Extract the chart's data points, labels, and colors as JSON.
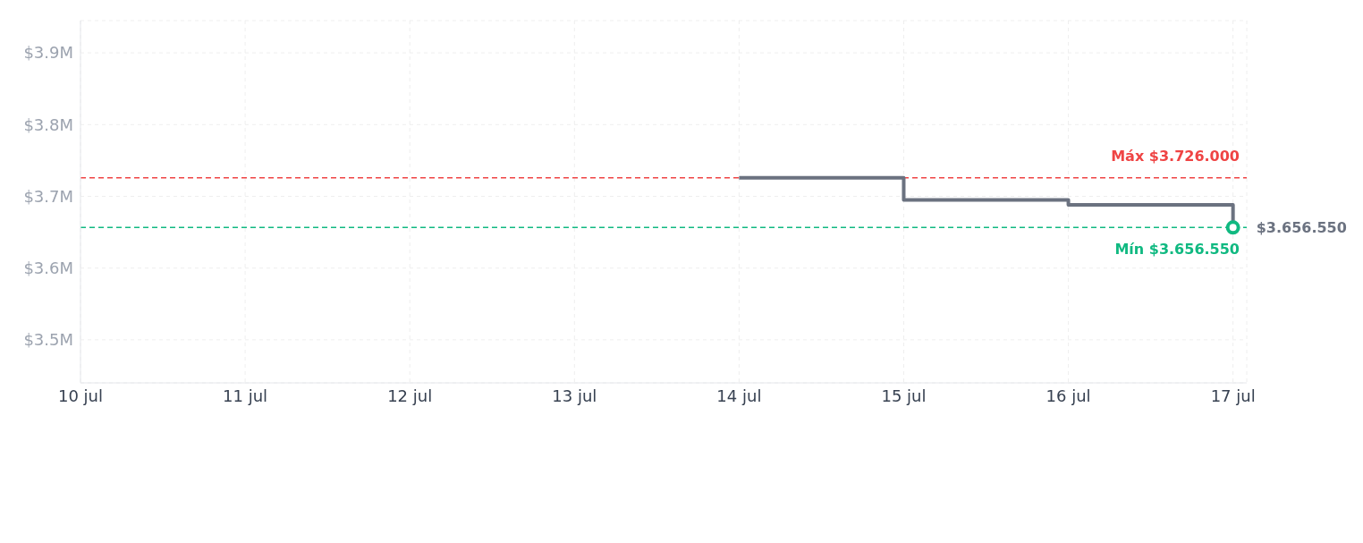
{
  "chart_data": {
    "type": "step",
    "x": [
      "--07-14",
      "--07-15",
      "--07-16",
      "--07-17"
    ],
    "series": [
      {
        "color": "#6b7280",
        "values": [
          3726000,
          3695000,
          3688000,
          3656550
        ]
      }
    ],
    "xlim": [
      "--07-10",
      "--07-17T02:00"
    ],
    "xticks": [
      {
        "value": "--07-10",
        "label": "10 jul"
      },
      {
        "value": "--07-11",
        "label": "11 jul"
      },
      {
        "value": "--07-12",
        "label": "12 jul"
      },
      {
        "value": "--07-13",
        "label": "13 jul"
      },
      {
        "value": "--07-14",
        "label": "14 jul"
      },
      {
        "value": "--07-15",
        "label": "15 jul"
      },
      {
        "value": "--07-16",
        "label": "16 jul"
      },
      {
        "value": "--07-17",
        "label": "17 jul"
      }
    ],
    "ylim": [
      3440000,
      3945000
    ],
    "yticks": [
      {
        "value": 3500000,
        "label": "$3.5M"
      },
      {
        "value": 3600000,
        "label": "$3.6M"
      },
      {
        "value": 3700000,
        "label": "$3.7M"
      },
      {
        "value": 3800000,
        "label": "$3.8M"
      },
      {
        "value": 3900000,
        "label": "$3.9M"
      }
    ],
    "ref_lines": [
      {
        "axis": "y",
        "value": 3726000,
        "label": "Máx $3.726.000",
        "color": "#ef4444",
        "line_style": "dashed"
      },
      {
        "axis": "y",
        "value": 3656550,
        "label": "Mín $3.656.550",
        "color": "#10b981",
        "line_style": "dashed"
      }
    ],
    "annotations": [
      {
        "text": "$3.656.550",
        "x": "--07-17",
        "y": 3656550
      }
    ],
    "grid": true,
    "marker": "none",
    "line_style": "solid"
  }
}
